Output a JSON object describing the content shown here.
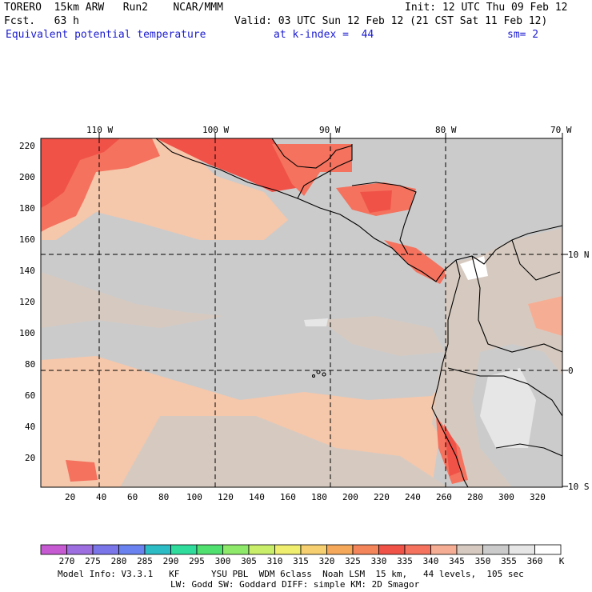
{
  "header": {
    "model": "TORERO  15km ARW   Run2    NCAR/MMM",
    "init": "Init: 12 UTC Thu 09 Feb 12",
    "fcst": "Fcst.   63 h",
    "valid": "Valid: 03 UTC Sun 12 Feb 12 (21 CST Sat 11 Feb 12)",
    "field": "Equivalent potential temperature",
    "level": "at k-index =  44",
    "smoothing": "sm= 2"
  },
  "map": {
    "top_longitude_labels": [
      "110 W",
      "100 W",
      "90 W",
      "80 W",
      "70 W"
    ],
    "right_latitude_labels": [
      "10 N",
      "0",
      "10 S"
    ],
    "left_grid_labels": [
      "220",
      "200",
      "180",
      "160",
      "140",
      "120",
      "100",
      "80",
      "60",
      "40",
      "20"
    ],
    "bottom_grid_labels": [
      "20",
      "40",
      "60",
      "80",
      "100",
      "120",
      "140",
      "160",
      "180",
      "200",
      "220",
      "240",
      "260",
      "280",
      "300",
      "320"
    ]
  },
  "colorbar": {
    "unit": "K",
    "levels": [
      "270",
      "275",
      "280",
      "285",
      "290",
      "295",
      "300",
      "305",
      "310",
      "315",
      "320",
      "325",
      "330",
      "335",
      "340",
      "345",
      "350",
      "355",
      "360"
    ],
    "colors": [
      "#c65ad2",
      "#9c6ee0",
      "#7a76ea",
      "#6a82f0",
      "#2cbcc6",
      "#30dc9c",
      "#50e070",
      "#8ee86a",
      "#c8ee6a",
      "#f0ee6e",
      "#f6d070",
      "#f5a85a",
      "#f4845a",
      "#f05248",
      "#f4725e",
      "#f5ae94",
      "#d6cac0",
      "#cbcbcb",
      "#e6e6e6",
      "#ffffff"
    ]
  },
  "footer": {
    "line1": "Model Info: V3.3.1   KF      YSU PBL  WDM 6class  Noah LSM  15 km,   44 levels,  105 sec",
    "line2": "LW: Godd SW: Goddard DIFF: simple KM: 2D Smagor"
  }
}
